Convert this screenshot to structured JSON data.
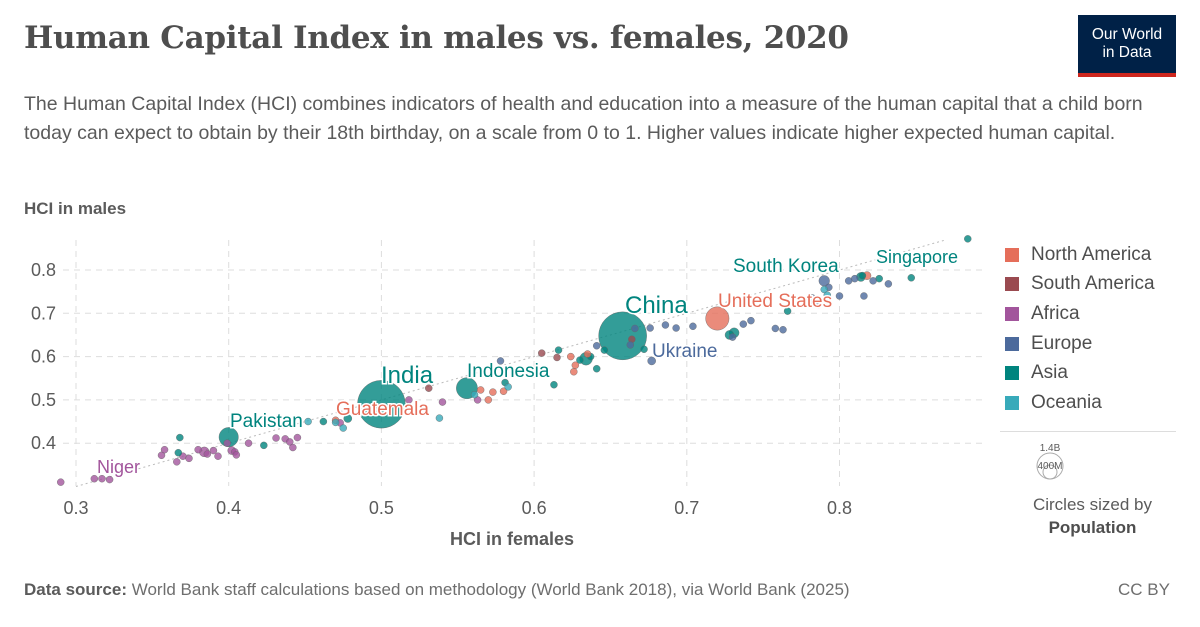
{
  "header": {
    "title": "Human Capital Index in males vs. females, 2020",
    "subtitle": "The Human Capital Index (HCI) combines indicators of health and education into a measure of the human capital that a child born today can expect to obtain by their 18th birthday, on a scale from 0 to 1. Higher values indicate higher expected human capital.",
    "logo_line1": "Our World",
    "logo_line2": "in Data"
  },
  "footer": {
    "source_label": "Data source:",
    "source_text": "World Bank staff calculations based on methodology (World Bank 2018), via World Bank (2025)",
    "license": "CC BY"
  },
  "size_legend": {
    "big": "1.4B",
    "small": "400M",
    "note": "Circles sized by",
    "variable": "Population"
  },
  "chart_data": {
    "type": "scatter",
    "title": "Human Capital Index in males vs. females, 2020",
    "xlabel": "HCI in females",
    "ylabel": "HCI in males",
    "xlim": [
      0.29,
      0.89
    ],
    "ylim": [
      0.3,
      0.87
    ],
    "xticks": [
      "0.3",
      "0.4",
      "0.5",
      "0.6",
      "0.7",
      "0.8"
    ],
    "yticks": [
      "0.4",
      "0.5",
      "0.6",
      "0.7",
      "0.8"
    ],
    "grid": true,
    "reference_line": "y = x",
    "legend_position": "right",
    "regions": [
      {
        "name": "North America",
        "color": "#e56e5a"
      },
      {
        "name": "South America",
        "color": "#9a4a50"
      },
      {
        "name": "Africa",
        "color": "#a2559c"
      },
      {
        "name": "Europe",
        "color": "#4c6a9c"
      },
      {
        "name": "Asia",
        "color": "#00847e"
      },
      {
        "name": "Oceania",
        "color": "#38aaba"
      }
    ],
    "labels": [
      {
        "name": "Niger",
        "region": "Africa"
      },
      {
        "name": "Pakistan",
        "region": "Asia"
      },
      {
        "name": "Guatemala",
        "region": "North America"
      },
      {
        "name": "India",
        "region": "Asia"
      },
      {
        "name": "Indonesia",
        "region": "Asia"
      },
      {
        "name": "China",
        "region": "Asia"
      },
      {
        "name": "Ukraine",
        "region": "Europe"
      },
      {
        "name": "United States",
        "region": "North America"
      },
      {
        "name": "South Korea",
        "region": "Asia"
      },
      {
        "name": "Singapore",
        "region": "Asia"
      }
    ],
    "points": [
      {
        "x": 0.29,
        "y": 0.31,
        "r": "Africa",
        "pop": 15
      },
      {
        "x": 0.312,
        "y": 0.318,
        "r": "Africa",
        "pop": 10
      },
      {
        "x": 0.317,
        "y": 0.318,
        "r": "Africa",
        "pop": 8
      },
      {
        "x": 0.322,
        "y": 0.316,
        "r": "Africa",
        "pop": 12
      },
      {
        "x": 0.356,
        "y": 0.372,
        "r": "Africa",
        "pop": 20
      },
      {
        "x": 0.358,
        "y": 0.385,
        "r": "Africa",
        "pop": 15
      },
      {
        "x": 0.366,
        "y": 0.357,
        "r": "Africa",
        "pop": 25,
        "name": "Niger"
      },
      {
        "x": 0.37,
        "y": 0.37,
        "r": "Africa",
        "pop": 30
      },
      {
        "x": 0.374,
        "y": 0.365,
        "r": "Africa",
        "pop": 12
      },
      {
        "x": 0.38,
        "y": 0.385,
        "r": "Africa",
        "pop": 15
      },
      {
        "x": 0.384,
        "y": 0.38,
        "r": "Africa",
        "pop": 60
      },
      {
        "x": 0.386,
        "y": 0.375,
        "r": "Africa",
        "pop": 20
      },
      {
        "x": 0.39,
        "y": 0.383,
        "r": "Africa",
        "pop": 15
      },
      {
        "x": 0.393,
        "y": 0.37,
        "r": "Africa",
        "pop": 12
      },
      {
        "x": 0.399,
        "y": 0.4,
        "r": "Africa",
        "pop": 10
      },
      {
        "x": 0.402,
        "y": 0.383,
        "r": "Africa",
        "pop": 40
      },
      {
        "x": 0.404,
        "y": 0.38,
        "r": "Africa",
        "pop": 12
      },
      {
        "x": 0.405,
        "y": 0.373,
        "r": "Africa",
        "pop": 10
      },
      {
        "x": 0.413,
        "y": 0.4,
        "r": "Africa",
        "pop": 8
      },
      {
        "x": 0.431,
        "y": 0.412,
        "r": "Africa",
        "pop": 10
      },
      {
        "x": 0.437,
        "y": 0.41,
        "r": "Africa",
        "pop": 12
      },
      {
        "x": 0.44,
        "y": 0.403,
        "r": "Africa",
        "pop": 10
      },
      {
        "x": 0.442,
        "y": 0.39,
        "r": "Africa",
        "pop": 8
      },
      {
        "x": 0.445,
        "y": 0.413,
        "r": "Africa",
        "pop": 20
      },
      {
        "x": 0.473,
        "y": 0.447,
        "r": "Africa",
        "pop": 10
      },
      {
        "x": 0.518,
        "y": 0.5,
        "r": "Africa",
        "pop": 10
      },
      {
        "x": 0.54,
        "y": 0.495,
        "r": "Africa",
        "pop": 30
      },
      {
        "x": 0.563,
        "y": 0.5,
        "r": "Africa",
        "pop": 12
      },
      {
        "x": 0.368,
        "y": 0.413,
        "r": "Asia",
        "pop": 10
      },
      {
        "x": 0.367,
        "y": 0.378,
        "r": "Asia",
        "pop": 15
      },
      {
        "x": 0.4,
        "y": 0.414,
        "r": "Asia",
        "pop": 230,
        "name": "Pakistan"
      },
      {
        "x": 0.423,
        "y": 0.395,
        "r": "Asia",
        "pop": 10
      },
      {
        "x": 0.462,
        "y": 0.45,
        "r": "Asia",
        "pop": 10
      },
      {
        "x": 0.478,
        "y": 0.457,
        "r": "Asia",
        "pop": 40
      },
      {
        "x": 0.5,
        "y": 0.49,
        "r": "Asia",
        "pop": 1400,
        "name": "India"
      },
      {
        "x": 0.556,
        "y": 0.527,
        "r": "Asia",
        "pop": 275,
        "name": "Indonesia"
      },
      {
        "x": 0.581,
        "y": 0.54,
        "r": "Asia",
        "pop": 10
      },
      {
        "x": 0.613,
        "y": 0.535,
        "r": "Asia",
        "pop": 8
      },
      {
        "x": 0.616,
        "y": 0.615,
        "r": "Asia",
        "pop": 10
      },
      {
        "x": 0.63,
        "y": 0.592,
        "r": "Asia",
        "pop": 20
      },
      {
        "x": 0.634,
        "y": 0.595,
        "r": "Asia",
        "pop": 100
      },
      {
        "x": 0.637,
        "y": 0.6,
        "r": "Asia",
        "pop": 20
      },
      {
        "x": 0.641,
        "y": 0.572,
        "r": "Asia",
        "pop": 10
      },
      {
        "x": 0.646,
        "y": 0.615,
        "r": "Asia",
        "pop": 8
      },
      {
        "x": 0.658,
        "y": 0.648,
        "r": "Asia",
        "pop": 1410,
        "name": "China"
      },
      {
        "x": 0.672,
        "y": 0.617,
        "r": "Asia",
        "pop": 10
      },
      {
        "x": 0.728,
        "y": 0.65,
        "r": "Asia",
        "pop": 50
      },
      {
        "x": 0.731,
        "y": 0.655,
        "r": "Asia",
        "pop": 60
      },
      {
        "x": 0.766,
        "y": 0.705,
        "r": "Asia",
        "pop": 10
      },
      {
        "x": 0.815,
        "y": 0.787,
        "r": "Asia",
        "pop": 10
      },
      {
        "x": 0.814,
        "y": 0.784,
        "r": "Asia",
        "pop": 50,
        "name": "South Korea"
      },
      {
        "x": 0.826,
        "y": 0.78,
        "r": "Asia",
        "pop": 8
      },
      {
        "x": 0.847,
        "y": 0.782,
        "r": "Asia",
        "pop": 8
      },
      {
        "x": 0.884,
        "y": 0.872,
        "r": "Asia",
        "pop": 6,
        "name": "Singapore"
      },
      {
        "x": 0.578,
        "y": 0.59,
        "r": "Europe",
        "pop": 8
      },
      {
        "x": 0.641,
        "y": 0.625,
        "r": "Europe",
        "pop": 10
      },
      {
        "x": 0.663,
        "y": 0.627,
        "r": "Europe",
        "pop": 8
      },
      {
        "x": 0.677,
        "y": 0.59,
        "r": "Europe",
        "pop": 40,
        "name": "Ukraine"
      },
      {
        "x": 0.666,
        "y": 0.665,
        "r": "Europe",
        "pop": 8
      },
      {
        "x": 0.676,
        "y": 0.666,
        "r": "Europe",
        "pop": 8
      },
      {
        "x": 0.686,
        "y": 0.673,
        "r": "Europe",
        "pop": 8
      },
      {
        "x": 0.693,
        "y": 0.666,
        "r": "Europe",
        "pop": 8
      },
      {
        "x": 0.704,
        "y": 0.67,
        "r": "Europe",
        "pop": 8
      },
      {
        "x": 0.73,
        "y": 0.645,
        "r": "Europe",
        "pop": 30
      },
      {
        "x": 0.737,
        "y": 0.675,
        "r": "Europe",
        "pop": 10
      },
      {
        "x": 0.742,
        "y": 0.683,
        "r": "Europe",
        "pop": 10
      },
      {
        "x": 0.758,
        "y": 0.665,
        "r": "Europe",
        "pop": 8
      },
      {
        "x": 0.763,
        "y": 0.662,
        "r": "Europe",
        "pop": 8
      },
      {
        "x": 0.79,
        "y": 0.775,
        "r": "Europe",
        "pop": 70
      },
      {
        "x": 0.793,
        "y": 0.76,
        "r": "Europe",
        "pop": 30
      },
      {
        "x": 0.81,
        "y": 0.78,
        "r": "Europe",
        "pop": 10
      },
      {
        "x": 0.806,
        "y": 0.775,
        "r": "Europe",
        "pop": 8
      },
      {
        "x": 0.822,
        "y": 0.775,
        "r": "Europe",
        "pop": 8
      },
      {
        "x": 0.832,
        "y": 0.768,
        "r": "Europe",
        "pop": 10
      },
      {
        "x": 0.786,
        "y": 0.72,
        "r": "Europe",
        "pop": 8
      },
      {
        "x": 0.782,
        "y": 0.732,
        "r": "Europe",
        "pop": 60
      },
      {
        "x": 0.8,
        "y": 0.74,
        "r": "Europe",
        "pop": 8
      },
      {
        "x": 0.816,
        "y": 0.74,
        "r": "Europe",
        "pop": 8
      },
      {
        "x": 0.47,
        "y": 0.453,
        "r": "North America",
        "pop": 18,
        "name": "Guatemala"
      },
      {
        "x": 0.565,
        "y": 0.523,
        "r": "North America",
        "pop": 8
      },
      {
        "x": 0.57,
        "y": 0.5,
        "r": "North America",
        "pop": 10
      },
      {
        "x": 0.573,
        "y": 0.518,
        "r": "North America",
        "pop": 8
      },
      {
        "x": 0.58,
        "y": 0.52,
        "r": "North America",
        "pop": 8
      },
      {
        "x": 0.624,
        "y": 0.6,
        "r": "North America",
        "pop": 30
      },
      {
        "x": 0.627,
        "y": 0.58,
        "r": "North America",
        "pop": 10
      },
      {
        "x": 0.626,
        "y": 0.565,
        "r": "North America",
        "pop": 8
      },
      {
        "x": 0.635,
        "y": 0.606,
        "r": "North America",
        "pop": 10
      },
      {
        "x": 0.72,
        "y": 0.688,
        "r": "North America",
        "pop": 335,
        "name": "United States"
      },
      {
        "x": 0.818,
        "y": 0.787,
        "r": "North America",
        "pop": 40
      },
      {
        "x": 0.531,
        "y": 0.527,
        "r": "South America",
        "pop": 10
      },
      {
        "x": 0.605,
        "y": 0.608,
        "r": "South America",
        "pop": 10
      },
      {
        "x": 0.615,
        "y": 0.598,
        "r": "South America",
        "pop": 10
      },
      {
        "x": 0.664,
        "y": 0.64,
        "r": "South America",
        "pop": 10
      },
      {
        "x": 0.452,
        "y": 0.45,
        "r": "Oceania",
        "pop": 8
      },
      {
        "x": 0.47,
        "y": 0.448,
        "r": "Oceania",
        "pop": 10
      },
      {
        "x": 0.475,
        "y": 0.435,
        "r": "Oceania",
        "pop": 8
      },
      {
        "x": 0.538,
        "y": 0.458,
        "r": "Oceania",
        "pop": 8
      },
      {
        "x": 0.561,
        "y": 0.512,
        "r": "Oceania",
        "pop": 8
      },
      {
        "x": 0.583,
        "y": 0.53,
        "r": "Oceania",
        "pop": 8
      },
      {
        "x": 0.79,
        "y": 0.755,
        "r": "Oceania",
        "pop": 26
      },
      {
        "x": 0.792,
        "y": 0.742,
        "r": "Oceania",
        "pop": 8
      }
    ]
  }
}
